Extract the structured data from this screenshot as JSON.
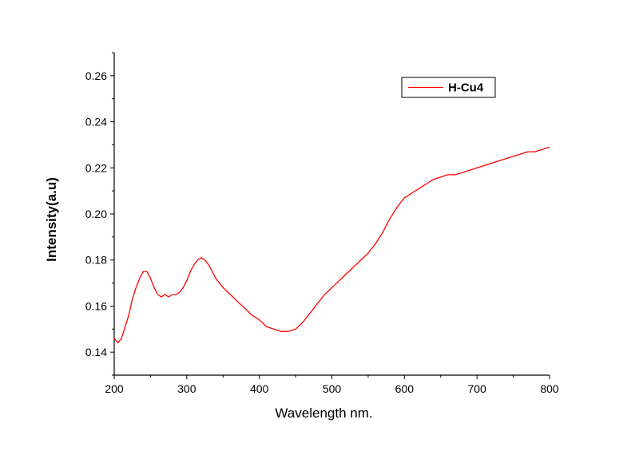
{
  "chart_data": {
    "type": "line",
    "title": "",
    "xlabel": "Wavelength nm.",
    "ylabel": "Intensity(a.u)",
    "xlim": [
      200,
      800
    ],
    "ylim": [
      0.13,
      0.27
    ],
    "x_ticks": [
      200,
      300,
      400,
      500,
      600,
      700,
      800
    ],
    "x_tick_labels": [
      "200",
      "300",
      "400",
      "500",
      "600",
      "700",
      "800"
    ],
    "y_ticks": [
      0.14,
      0.16,
      0.18,
      0.2,
      0.22,
      0.24,
      0.26
    ],
    "y_tick_labels": [
      "0.14",
      "0.16",
      "0.18",
      "0.20",
      "0.22",
      "0.24",
      "0.26"
    ],
    "grid": false,
    "legend_position": "top-right",
    "series": [
      {
        "name": "H-Cu4",
        "color": "#ff0000",
        "x": [
          200,
          205,
          210,
          215,
          220,
          225,
          230,
          235,
          240,
          245,
          250,
          255,
          260,
          265,
          270,
          275,
          280,
          285,
          290,
          295,
          300,
          305,
          310,
          315,
          320,
          325,
          330,
          335,
          340,
          350,
          360,
          370,
          380,
          390,
          400,
          410,
          420,
          430,
          440,
          450,
          460,
          470,
          480,
          490,
          500,
          510,
          520,
          530,
          540,
          550,
          560,
          570,
          580,
          590,
          600,
          610,
          620,
          630,
          640,
          650,
          660,
          670,
          680,
          690,
          700,
          710,
          720,
          730,
          740,
          750,
          760,
          770,
          780,
          790,
          800
        ],
        "y": [
          0.146,
          0.144,
          0.146,
          0.151,
          0.156,
          0.163,
          0.168,
          0.172,
          0.175,
          0.175,
          0.172,
          0.168,
          0.165,
          0.164,
          0.165,
          0.164,
          0.165,
          0.165,
          0.166,
          0.168,
          0.171,
          0.175,
          0.178,
          0.18,
          0.181,
          0.18,
          0.178,
          0.175,
          0.172,
          0.168,
          0.165,
          0.162,
          0.159,
          0.156,
          0.154,
          0.151,
          0.15,
          0.149,
          0.149,
          0.15,
          0.153,
          0.157,
          0.161,
          0.165,
          0.168,
          0.171,
          0.174,
          0.177,
          0.18,
          0.183,
          0.187,
          0.192,
          0.198,
          0.203,
          0.207,
          0.209,
          0.211,
          0.213,
          0.215,
          0.216,
          0.217,
          0.217,
          0.218,
          0.219,
          0.22,
          0.221,
          0.222,
          0.223,
          0.224,
          0.225,
          0.226,
          0.227,
          0.227,
          0.228,
          0.229
        ]
      }
    ]
  }
}
